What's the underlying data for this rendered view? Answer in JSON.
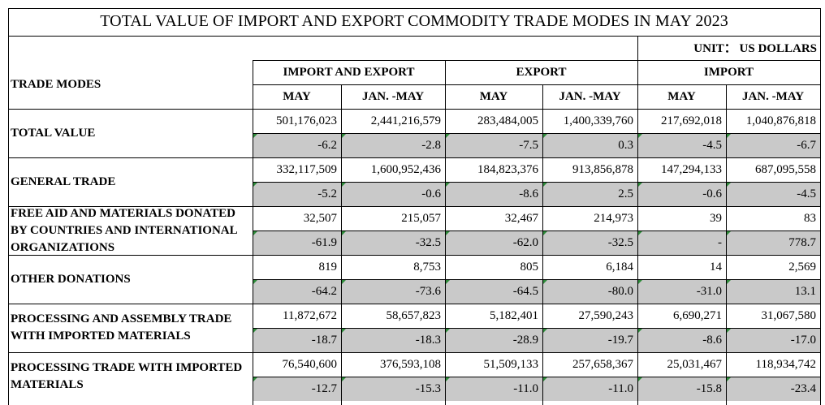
{
  "title": "TOTAL VALUE OF IMPORT AND EXPORT COMMODITY TRADE MODES IN MAY 2023",
  "unit": "UNIT： US DOLLARS",
  "header": {
    "trade_modes": "TRADE MODES",
    "groups": [
      "IMPORT AND EXPORT",
      "EXPORT",
      "IMPORT"
    ],
    "sub": [
      "MAY",
      "JAN. -MAY",
      "MAY",
      "JAN. -MAY",
      "MAY",
      "JAN. -MAY"
    ]
  },
  "rows": [
    {
      "mode": "TOTAL VALUE",
      "values": [
        "501,176,023",
        "2,441,216,579",
        "283,484,005",
        "1,400,339,760",
        "217,692,018",
        "1,040,876,818"
      ],
      "changes": [
        "-6.2",
        "-2.8",
        "-7.5",
        "0.3",
        "-4.5",
        "-6.7"
      ]
    },
    {
      "mode": "GENERAL TRADE",
      "values": [
        "332,117,509",
        "1,600,952,436",
        "184,823,376",
        "913,856,878",
        "147,294,133",
        "687,095,558"
      ],
      "changes": [
        "-5.2",
        "-0.6",
        "-8.6",
        "2.5",
        "-0.6",
        "-4.5"
      ]
    },
    {
      "mode": "FREE AID AND MATERIALS DONATED BY COUNTRIES AND INTERNATIONAL ORGANIZATIONS",
      "values": [
        "32,507",
        "215,057",
        "32,467",
        "214,973",
        "39",
        "83"
      ],
      "changes": [
        "-61.9",
        "-32.5",
        "-62.0",
        "-32.5",
        "-",
        "778.7"
      ]
    },
    {
      "mode": "OTHER DONATIONS",
      "values": [
        "819",
        "8,753",
        "805",
        "6,184",
        "14",
        "2,569"
      ],
      "changes": [
        "-64.2",
        "-73.6",
        "-64.5",
        "-80.0",
        "-31.0",
        "13.1"
      ]
    },
    {
      "mode": "PROCESSING AND ASSEMBLY TRADE WITH IMPORTED MATERIALS",
      "values": [
        "11,872,672",
        "58,657,823",
        "5,182,401",
        "27,590,243",
        "6,690,271",
        "31,067,580"
      ],
      "changes": [
        "-18.7",
        "-18.3",
        "-28.9",
        "-19.7",
        "-8.6",
        "-17.0"
      ]
    },
    {
      "mode": "PROCESSING TRADE WITH IMPORTED MATERIALS",
      "values": [
        "76,540,600",
        "376,593,108",
        "51,509,133",
        "257,658,367",
        "25,031,467",
        "118,934,742"
      ],
      "changes": [
        "-12.7",
        "-15.3",
        "-11.0",
        "-11.0",
        "-15.8",
        "-23.4"
      ]
    }
  ],
  "colors": {
    "change_row_fill": "#c9c9c9",
    "cell_marker": "#2e8b3a",
    "grid": "#000000"
  }
}
